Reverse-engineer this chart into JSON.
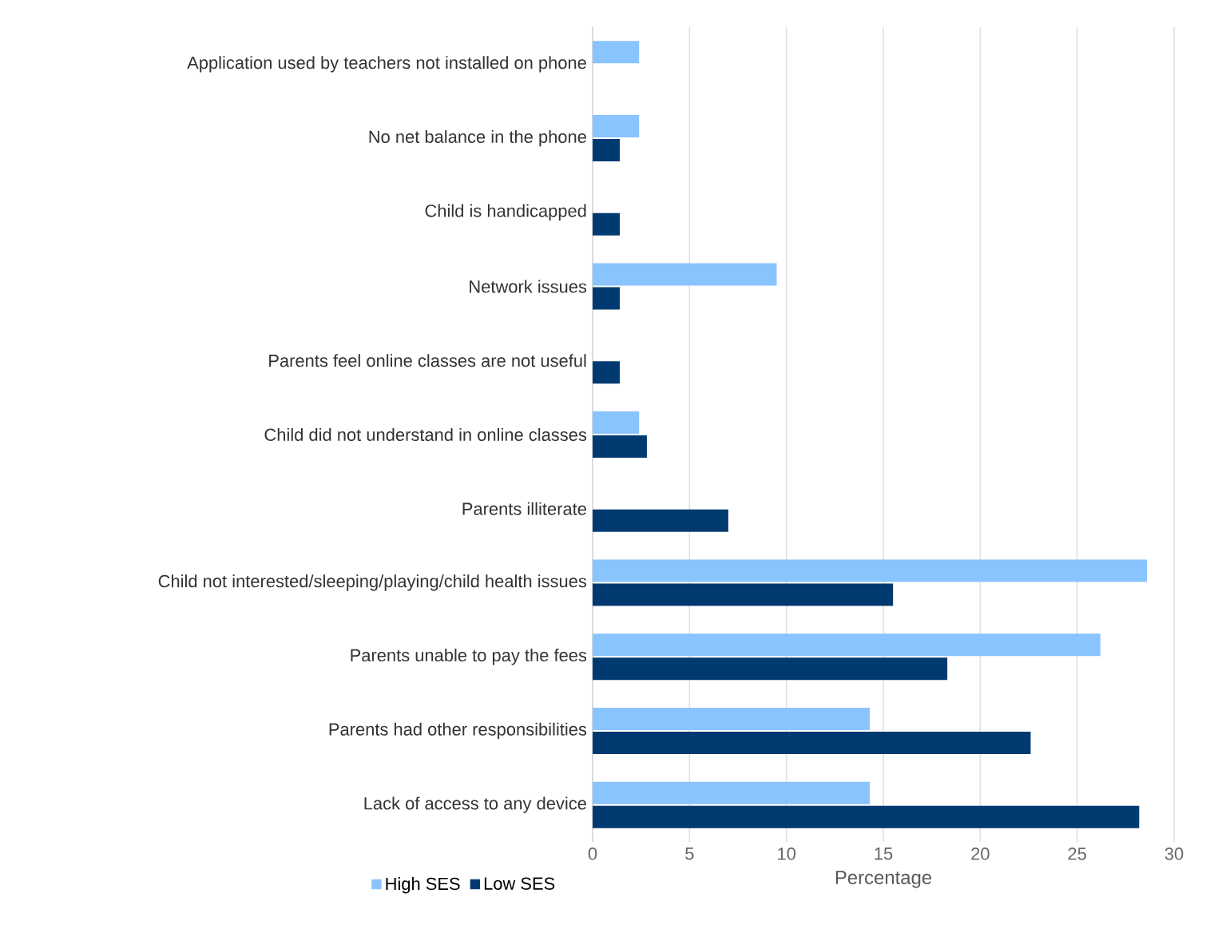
{
  "chart_data": {
    "type": "bar",
    "orientation": "horizontal",
    "categories": [
      "Application used by teachers not installed on phone",
      "No net balance in the phone",
      "Child is handicapped",
      "Network issues",
      "Parents feel online classes are not useful",
      "Child did not understand in online classes",
      "Parents illiterate",
      "Child not interested/sleeping/playing/child health issues",
      "Parents unable to pay the fees",
      "Parents had other responsibilities",
      "Lack of access to any device"
    ],
    "series": [
      {
        "name": "High SES",
        "color": "#8ac4ff",
        "values": [
          2.4,
          2.4,
          null,
          9.5,
          null,
          2.4,
          null,
          28.6,
          26.2,
          14.3,
          14.3
        ]
      },
      {
        "name": "Low SES",
        "color": "#003a70",
        "values": [
          null,
          1.4,
          1.4,
          1.4,
          1.4,
          2.8,
          7.0,
          15.5,
          18.3,
          22.6,
          28.2
        ]
      }
    ],
    "xlabel": "Percentage",
    "xlim": [
      0,
      30
    ],
    "xticks": [
      0,
      5,
      10,
      15,
      20,
      25,
      30
    ],
    "grid": "x",
    "legend": "bottom left"
  }
}
